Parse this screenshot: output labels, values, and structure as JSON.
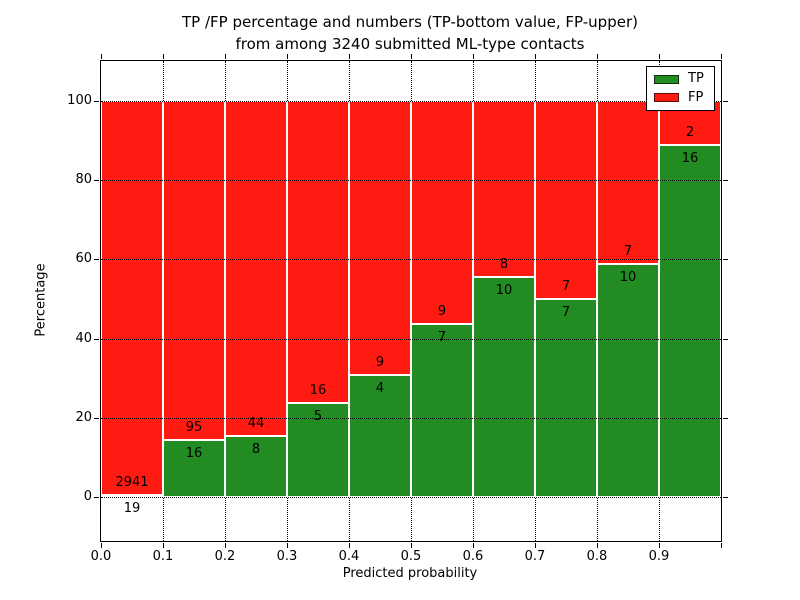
{
  "figure": {
    "title_line1": "TP /FP percentage and numbers (TP-bottom value, FP-upper)",
    "title_line2": "from among 3240 submitted ML-type contacts"
  },
  "chart_data": {
    "type": "bar",
    "stacked": true,
    "title": "TP /FP percentage and numbers (TP-bottom value, FP-upper) from among 3240 submitted ML-type contacts",
    "xlabel": "Predicted probability",
    "ylabel": "Percentage",
    "total_contacts": 3240,
    "bins": [
      "0.0-0.1",
      "0.1-0.2",
      "0.2-0.3",
      "0.3-0.4",
      "0.4-0.5",
      "0.5-0.6",
      "0.6-0.7",
      "0.7-0.8",
      "0.8-0.9",
      "0.9-1.0"
    ],
    "series": [
      {
        "name": "TP",
        "color": "#228b22",
        "counts": [
          19,
          16,
          8,
          5,
          4,
          7,
          10,
          7,
          10,
          16
        ]
      },
      {
        "name": "FP",
        "color": "#ff1a12",
        "counts": [
          2941,
          95,
          44,
          16,
          9,
          9,
          8,
          7,
          7,
          2
        ]
      }
    ],
    "tp_percent": [
      0.64,
      14.41,
      15.38,
      23.81,
      30.77,
      43.75,
      55.56,
      50.0,
      58.82,
      88.89
    ],
    "bars_sum_to_percent": 100,
    "xlim": [
      0.0,
      1.0
    ],
    "ylim": [
      -11,
      110
    ],
    "xtick_labels": [
      "0.0",
      "0.1",
      "0.2",
      "0.3",
      "0.4",
      "0.5",
      "0.6",
      "0.7",
      "0.8",
      "0.9"
    ],
    "ytick_values": [
      0,
      20,
      40,
      60,
      80,
      100
    ],
    "ytick_labels": [
      "0",
      "20",
      "40",
      "60",
      "80",
      "100"
    ],
    "grid": true,
    "legend": {
      "position": "upper right",
      "entries": [
        "TP",
        "FP"
      ]
    }
  }
}
